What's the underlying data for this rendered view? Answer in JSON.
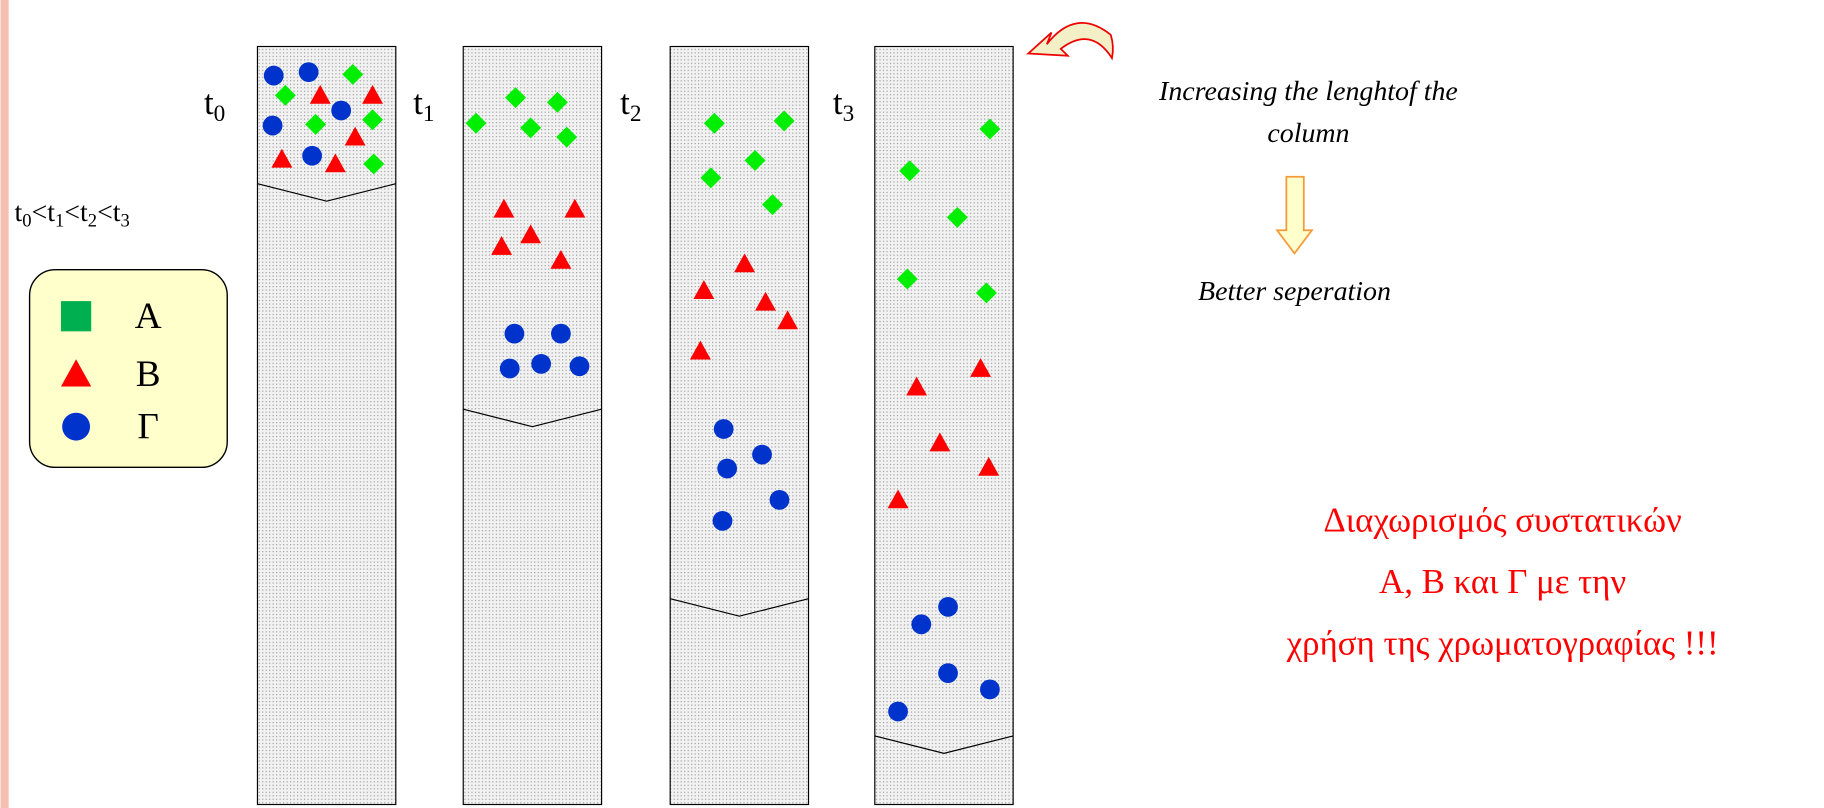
{
  "columns": [
    {
      "label": "t",
      "subscript": "0"
    },
    {
      "label": "t",
      "subscript": "1"
    },
    {
      "label": "t",
      "subscript": "2"
    },
    {
      "label": "t",
      "subscript": "3"
    }
  ],
  "order": {
    "terms": [
      {
        "label": "t",
        "subscript": "0"
      },
      {
        "label": "t",
        "subscript": "1"
      },
      {
        "label": "t",
        "subscript": "2"
      },
      {
        "label": "t",
        "subscript": "3"
      }
    ],
    "separator": "<"
  },
  "legend": [
    {
      "label": "A"
    },
    {
      "label": "B"
    },
    {
      "label": "Γ"
    }
  ],
  "note": {
    "lines": [
      "Increasing the lenghtof the",
      "column"
    ],
    "result": "Better seperation"
  },
  "conclusion": {
    "lines": [
      "Διαχωρισμός συστατικών",
      "A, B και Γ με την",
      "χρήση της χρωματογραφίας !!!"
    ]
  }
}
